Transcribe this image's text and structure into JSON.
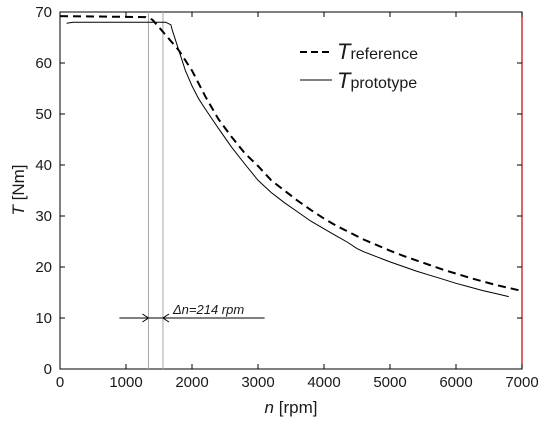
{
  "chart_data": {
    "type": "line",
    "xlabel": {
      "symbol": "n",
      "unit": "[rpm]"
    },
    "ylabel": {
      "symbol": "T",
      "unit": "[Nm]"
    },
    "xlim": [
      0,
      7000
    ],
    "ylim": [
      0,
      70
    ],
    "xticks": [
      0,
      1000,
      2000,
      3000,
      4000,
      5000,
      6000,
      7000
    ],
    "yticks": [
      0,
      10,
      20,
      30,
      40,
      50,
      60,
      70
    ],
    "grid": false,
    "legend_position": "top-right",
    "series": [
      {
        "name": "reference",
        "symbol": "T",
        "subscript": "reference",
        "style": "dashed",
        "color": "#000000",
        "x": [
          0,
          1300,
          1400,
          1500,
          1600,
          1700,
          1800,
          1900,
          2000,
          2200,
          2400,
          2600,
          2800,
          3000,
          3200,
          3400,
          3600,
          3800,
          4000,
          4200,
          4400,
          4600,
          4800,
          5000,
          5200,
          5400,
          5600,
          5800,
          6000,
          6200,
          6400,
          6600,
          6800,
          7000
        ],
        "y": [
          69.2,
          69.0,
          68.5,
          67.0,
          65.5,
          64.0,
          62.5,
          60.5,
          58.5,
          53.5,
          49.0,
          45.5,
          42.3,
          39.8,
          37.0,
          35.0,
          33.0,
          31.2,
          29.5,
          28.0,
          26.7,
          25.4,
          24.3,
          23.2,
          22.2,
          21.3,
          20.4,
          19.5,
          18.7,
          17.9,
          17.2,
          16.5,
          15.9,
          15.3
        ]
      },
      {
        "name": "prototype",
        "symbol": "T",
        "subscript": "prototype",
        "style": "solid",
        "color": "#000000",
        "x": [
          100,
          200,
          400,
          600,
          800,
          1000,
          1200,
          1400,
          1500,
          1600,
          1680,
          1700,
          1800,
          1900,
          2000,
          2100,
          2200,
          2400,
          2600,
          2800,
          3000,
          3200,
          3400,
          3600,
          3800,
          4000,
          4200,
          4350,
          4500,
          4600,
          4800,
          5000,
          5200,
          5400,
          5600,
          5800,
          6000,
          6200,
          6400,
          6600,
          6800
        ],
        "y": [
          67.8,
          68.0,
          68.0,
          68.0,
          68.0,
          68.0,
          68.0,
          68.0,
          68.0,
          68.0,
          67.5,
          66.5,
          62.5,
          58.5,
          55.5,
          53.0,
          51.0,
          47.2,
          43.5,
          40.2,
          37.0,
          34.6,
          32.6,
          30.8,
          29.0,
          27.5,
          26.0,
          24.9,
          23.6,
          23.0,
          22.0,
          21.0,
          20.1,
          19.2,
          18.4,
          17.6,
          16.8,
          16.1,
          15.4,
          14.8,
          14.2
        ]
      }
    ],
    "annotations": {
      "vlines_x": [
        1340,
        1560
      ],
      "delta_arrow": {
        "y": 10,
        "x_start": 900,
        "x_end": 3100,
        "text": "Δn=214 rpm"
      }
    },
    "colors": {
      "axis_box": "#000000",
      "right_edge": "#c00000",
      "guide_lines": "#a6a6a6"
    }
  }
}
